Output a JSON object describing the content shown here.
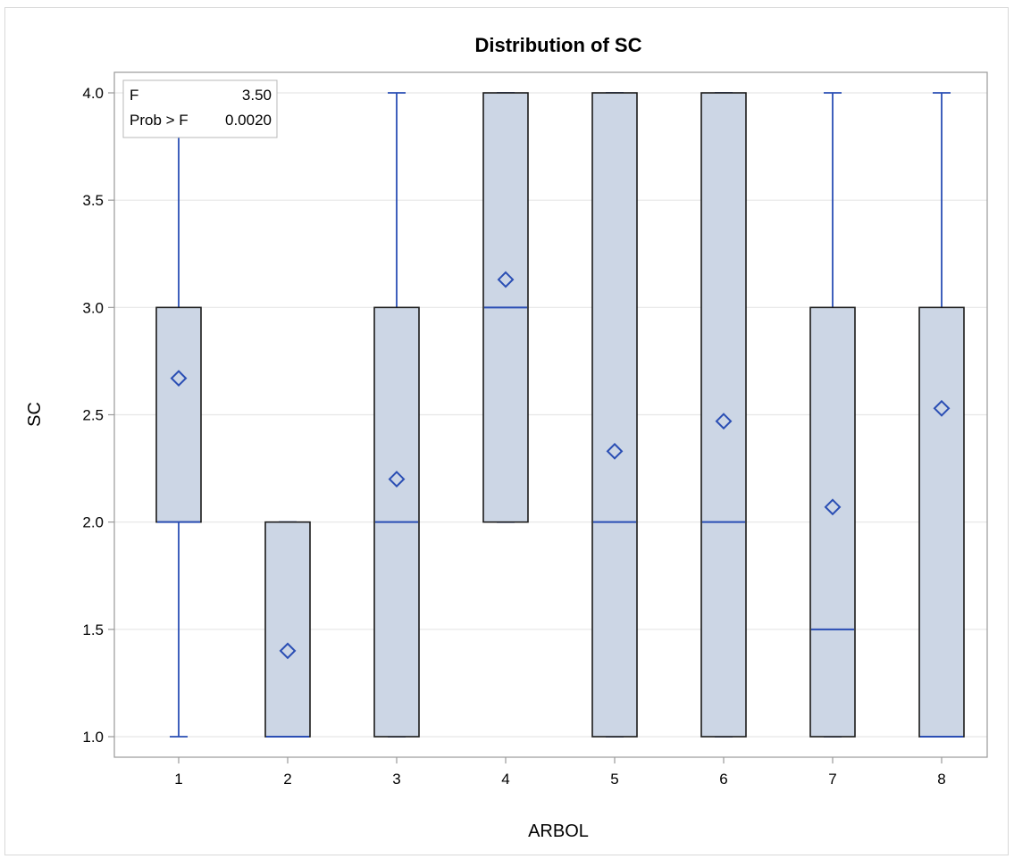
{
  "chart_data": {
    "type": "box",
    "title": "Distribution of SC",
    "xlabel": "ARBOL",
    "ylabel": "SC",
    "ylim": [
      1.0,
      4.0
    ],
    "yticks": [
      "1.0",
      "1.5",
      "2.0",
      "2.5",
      "3.0",
      "3.5",
      "4.0"
    ],
    "categories": [
      "1",
      "2",
      "3",
      "4",
      "5",
      "6",
      "7",
      "8"
    ],
    "boxes": [
      {
        "category": "1",
        "min": 1.0,
        "q1": 2.0,
        "median": 2.0,
        "q3": 3.0,
        "max": 4.0,
        "mean": 2.67
      },
      {
        "category": "2",
        "min": 1.0,
        "q1": 1.0,
        "median": 1.0,
        "q3": 2.0,
        "max": 2.0,
        "mean": 1.4
      },
      {
        "category": "3",
        "min": 1.0,
        "q1": 1.0,
        "median": 2.0,
        "q3": 3.0,
        "max": 4.0,
        "mean": 2.2
      },
      {
        "category": "4",
        "min": 2.0,
        "q1": 2.0,
        "median": 3.0,
        "q3": 4.0,
        "max": 4.0,
        "mean": 3.13
      },
      {
        "category": "5",
        "min": 1.0,
        "q1": 1.0,
        "median": 2.0,
        "q3": 4.0,
        "max": 4.0,
        "mean": 2.33
      },
      {
        "category": "6",
        "min": 1.0,
        "q1": 1.0,
        "median": 2.0,
        "q3": 4.0,
        "max": 4.0,
        "mean": 2.47
      },
      {
        "category": "7",
        "min": 1.0,
        "q1": 1.0,
        "median": 1.5,
        "q3": 3.0,
        "max": 4.0,
        "mean": 2.07
      },
      {
        "category": "8",
        "min": 1.0,
        "q1": 1.0,
        "median": 1.0,
        "q3": 3.0,
        "max": 4.0,
        "mean": 2.53
      }
    ],
    "inset": {
      "rows": [
        {
          "label": "F",
          "value": "3.50"
        },
        {
          "label": "Prob > F",
          "value": "0.0020"
        }
      ]
    },
    "grid": true,
    "colors": {
      "box_fill": "#ccd6e5",
      "box_stroke": "#1a1a1a",
      "whisker": "#2a4eb4",
      "median": "#2a4eb4",
      "mean_marker": "#2a4eb4",
      "grid": "#e6e6e6",
      "axis": "#9a9a9a"
    }
  }
}
